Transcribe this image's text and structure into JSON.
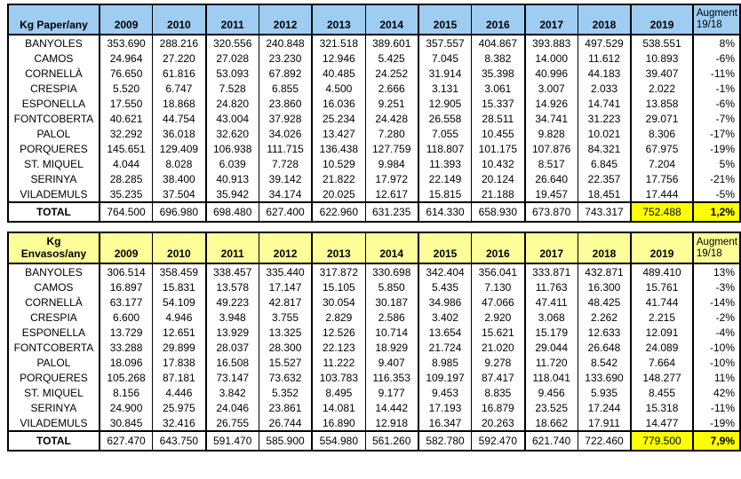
{
  "colors": {
    "table1_header_bg": "#9FCDF2",
    "table2_header_bg": "#FFFF99",
    "highlight_bg": "#FFFF00",
    "border": "#000000"
  },
  "years": [
    "2009",
    "2010",
    "2011",
    "2012",
    "2013",
    "2014",
    "2015",
    "2016",
    "2017",
    "2018",
    "2019"
  ],
  "augment_header": "Augment\n19/18",
  "tables": [
    {
      "title": "Kg Paper/any",
      "rows": [
        {
          "name": "BANYOLES",
          "values": [
            "353.690",
            "288.216",
            "320.556",
            "240.848",
            "321.518",
            "389.601",
            "357.557",
            "404.867",
            "393.883",
            "497.529",
            "538.551"
          ],
          "augment": "8%"
        },
        {
          "name": "CAMOS",
          "values": [
            "24.964",
            "27.220",
            "27.028",
            "23.230",
            "12.946",
            "5.425",
            "7.045",
            "8.382",
            "14.000",
            "11.612",
            "10.893"
          ],
          "augment": "-6%"
        },
        {
          "name": "CORNELLÀ",
          "values": [
            "76.650",
            "61.816",
            "53.093",
            "67.892",
            "40.485",
            "24.252",
            "31.914",
            "35.398",
            "40.996",
            "44.183",
            "39.407"
          ],
          "augment": "-11%"
        },
        {
          "name": "CRESPIA",
          "values": [
            "5.520",
            "6.747",
            "7.528",
            "6.855",
            "4.500",
            "2.666",
            "3.131",
            "3.061",
            "3.007",
            "2.033",
            "2.022"
          ],
          "augment": "-1%"
        },
        {
          "name": "ESPONELLA",
          "values": [
            "17.550",
            "18.868",
            "24.820",
            "23.860",
            "16.036",
            "9.251",
            "12.905",
            "15.337",
            "14.926",
            "14.741",
            "13.858"
          ],
          "augment": "-6%"
        },
        {
          "name": "FONTCOBERTA",
          "values": [
            "40.621",
            "44.754",
            "43.004",
            "37.928",
            "25.234",
            "24.428",
            "26.558",
            "28.511",
            "34.741",
            "31.223",
            "29.071"
          ],
          "augment": "-7%"
        },
        {
          "name": "PALOL",
          "values": [
            "32.292",
            "36.018",
            "32.620",
            "34.026",
            "13.427",
            "7.280",
            "7.055",
            "10.455",
            "9.828",
            "10.021",
            "8.306"
          ],
          "augment": "-17%"
        },
        {
          "name": "PORQUERES",
          "values": [
            "145.651",
            "129.409",
            "106.938",
            "111.715",
            "136.438",
            "127.759",
            "118.807",
            "101.175",
            "107.876",
            "84.321",
            "67.975"
          ],
          "augment": "-19%"
        },
        {
          "name": "ST. MIQUEL",
          "values": [
            "4.044",
            "8.028",
            "6.039",
            "7.728",
            "10.529",
            "9.984",
            "11.393",
            "10.432",
            "8.517",
            "6.845",
            "7.204"
          ],
          "augment": "5%"
        },
        {
          "name": "SERINYA",
          "values": [
            "28.285",
            "38.400",
            "40.913",
            "39.142",
            "21.822",
            "17.972",
            "22.149",
            "20.124",
            "26.640",
            "22.357",
            "17.756"
          ],
          "augment": "-21%"
        },
        {
          "name": "VILADEMULS",
          "values": [
            "35.235",
            "37.504",
            "35.942",
            "34.174",
            "20.025",
            "12.617",
            "15.815",
            "21.188",
            "19.457",
            "18.451",
            "17.444"
          ],
          "augment": "-5%"
        }
      ],
      "total": {
        "name": "TOTAL",
        "values": [
          "764.500",
          "696.980",
          "698.480",
          "627.400",
          "622.960",
          "631.235",
          "614.330",
          "658.930",
          "673.870",
          "743.317",
          "752.488"
        ],
        "augment": "1,2%"
      }
    },
    {
      "title": "Kg\nEnvasos/any",
      "rows": [
        {
          "name": "BANYOLES",
          "values": [
            "306.514",
            "358.459",
            "338.457",
            "335.440",
            "317.872",
            "330.698",
            "342.404",
            "356.041",
            "333.871",
            "432.871",
            "489.410"
          ],
          "augment": "13%"
        },
        {
          "name": "CAMOS",
          "values": [
            "16.897",
            "15.831",
            "13.578",
            "17.147",
            "15.105",
            "5.850",
            "5.435",
            "7.130",
            "11.763",
            "16.300",
            "15.761"
          ],
          "augment": "-3%"
        },
        {
          "name": "CORNELLÀ",
          "values": [
            "63.177",
            "54.109",
            "49.223",
            "42.817",
            "30.054",
            "30.187",
            "34.986",
            "47.066",
            "47.411",
            "48.425",
            "41.744"
          ],
          "augment": "-14%"
        },
        {
          "name": "CRESPIA",
          "values": [
            "6.600",
            "4.946",
            "3.948",
            "3.755",
            "2.829",
            "2.586",
            "3.402",
            "2.920",
            "3.068",
            "2.262",
            "2.215"
          ],
          "augment": "-2%"
        },
        {
          "name": "ESPONELLA",
          "values": [
            "13.729",
            "12.651",
            "13.929",
            "13.325",
            "12.526",
            "10.714",
            "13.654",
            "15.621",
            "15.179",
            "12.633",
            "12.091"
          ],
          "augment": "-4%"
        },
        {
          "name": "FONTCOBERTA",
          "values": [
            "33.288",
            "29.899",
            "28.037",
            "28.300",
            "22.123",
            "18.929",
            "21.724",
            "21.020",
            "29.044",
            "26.648",
            "24.089"
          ],
          "augment": "-10%"
        },
        {
          "name": "PALOL",
          "values": [
            "18.096",
            "17.838",
            "16.508",
            "15.527",
            "11.222",
            "9.407",
            "8.985",
            "9.278",
            "11.720",
            "8.542",
            "7.664"
          ],
          "augment": "-10%"
        },
        {
          "name": "PORQUERES",
          "values": [
            "105.268",
            "87.181",
            "73.147",
            "73.632",
            "103.783",
            "116.353",
            "109.197",
            "87.417",
            "118.041",
            "133.690",
            "148.277"
          ],
          "augment": "11%"
        },
        {
          "name": "ST. MIQUEL",
          "values": [
            "8.156",
            "4.446",
            "3.842",
            "5.352",
            "8.495",
            "9.177",
            "9.453",
            "8.835",
            "9.456",
            "5.935",
            "8.455"
          ],
          "augment": "42%"
        },
        {
          "name": "SERINYA",
          "values": [
            "24.900",
            "25.975",
            "24.046",
            "23.861",
            "14.081",
            "14.442",
            "17.193",
            "16.879",
            "23.525",
            "17.244",
            "15.318"
          ],
          "augment": "-11%"
        },
        {
          "name": "VILADEMULS",
          "values": [
            "30.845",
            "32.416",
            "26.755",
            "26.744",
            "16.890",
            "12.918",
            "16.347",
            "20.263",
            "18.662",
            "17.911",
            "14.477"
          ],
          "augment": "-19%"
        }
      ],
      "total": {
        "name": "TOTAL",
        "values": [
          "627.470",
          "643.750",
          "591.470",
          "585.900",
          "554.980",
          "561.260",
          "582.780",
          "592.470",
          "621.740",
          "722.460",
          "779.500"
        ],
        "augment": "7,9%"
      }
    }
  ]
}
